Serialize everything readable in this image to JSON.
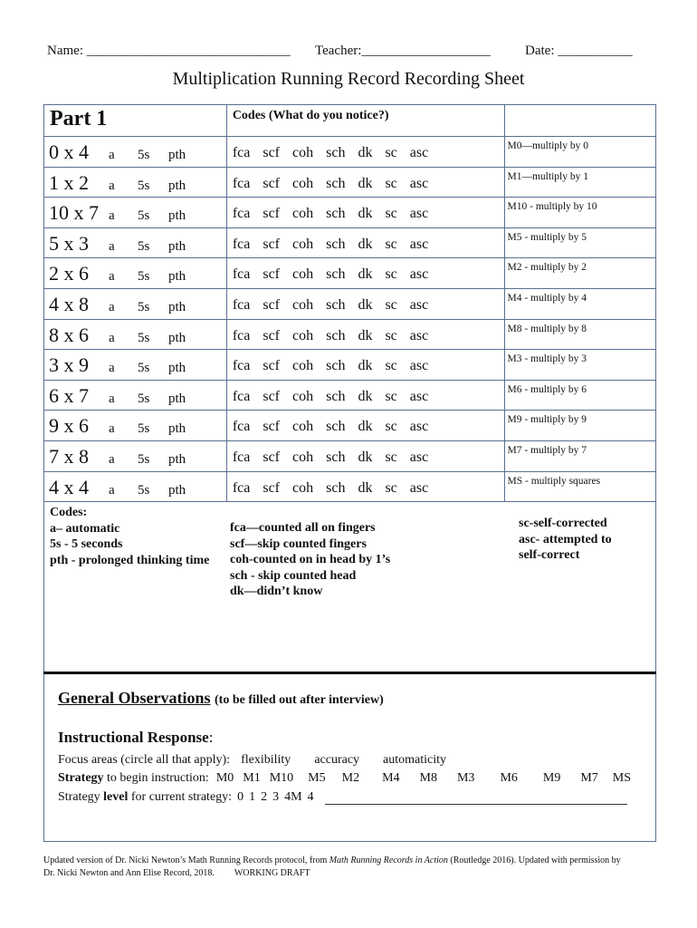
{
  "header": {
    "name": "Name: ______________________________",
    "teacher": "Teacher:___________________",
    "date": "Date: ___________"
  },
  "title": "Multiplication Running Record Recording Sheet",
  "table": {
    "part_label": "Part 1",
    "codes_header": "Codes (What do you notice?)",
    "options": [
      "a",
      "5s",
      "pth"
    ],
    "codes": [
      "fca",
      "scf",
      "coh",
      "sch",
      "dk",
      "sc",
      "asc"
    ],
    "rows": [
      {
        "problem": "0 x 4",
        "strategy": "M0—multiply by 0"
      },
      {
        "problem": "1 x 2",
        "strategy": "M1—multiply by 1"
      },
      {
        "problem": "10 x 7",
        "strategy": "M10 - multiply by 10"
      },
      {
        "problem": "5 x 3",
        "strategy": "M5 - multiply by  5"
      },
      {
        "problem": "2 x 6",
        "strategy": "M2 - multiply by 2"
      },
      {
        "problem": "4 x 8",
        "strategy": "M4 - multiply by 4"
      },
      {
        "problem": "8 x 6",
        "strategy": "M8 - multiply by 8"
      },
      {
        "problem": "3 x 9",
        "strategy": "M3 - multiply by 3"
      },
      {
        "problem": "6 x 7",
        "strategy": "M6 - multiply by 6"
      },
      {
        "problem": "9 x 6",
        "strategy": "M9 - multiply by 9"
      },
      {
        "problem": "7 x 8",
        "strategy": "M7 - multiply by 7"
      },
      {
        "problem": "4 x 4",
        "strategy": "MS - multiply squares"
      }
    ]
  },
  "legend": {
    "col1": [
      "Codes:",
      "a– automatic",
      "5s - 5 seconds",
      "pth - prolonged thinking time"
    ],
    "col2": [
      "fca—counted all on fingers",
      "scf—skip counted fingers",
      "coh-counted on in head by 1’s",
      "sch - skip counted head",
      "dk—didn’t know"
    ],
    "col3": [
      "sc-self-corrected",
      "asc- attempted to",
      "self-correct"
    ]
  },
  "observations": {
    "title": "General Observations",
    "subtitle": "(to be filled out after interview)",
    "instructional": "Instructional Response",
    "focus_label": "Focus areas (circle all that apply):",
    "focus_options": [
      "flexibility",
      "accuracy",
      "automaticity"
    ],
    "strategy_bold": "Strategy",
    "strategy_label": " to begin instruction:",
    "strategy_options": [
      "M0",
      "M1",
      "M10",
      "M5",
      "M2",
      "M4",
      "M8",
      "M3",
      "M6",
      "M9",
      "M7",
      "MS"
    ],
    "level_pre": "Strategy ",
    "level_bold": "level",
    "level_post": " for current strategy:",
    "level_options": [
      "0",
      "1",
      "2",
      "3",
      "4M",
      "4"
    ]
  },
  "footer": {
    "text1": "Updated version of Dr. Nicki Newton’s Math Running Records protocol, from ",
    "book": "Math Running Records in Action",
    "text2": " (Routledge 2016). Updated with permission by",
    "line2": "Dr. Nicki Newton and Ann Elise Record,  2018.",
    "draft": "WORKING DRAFT"
  }
}
